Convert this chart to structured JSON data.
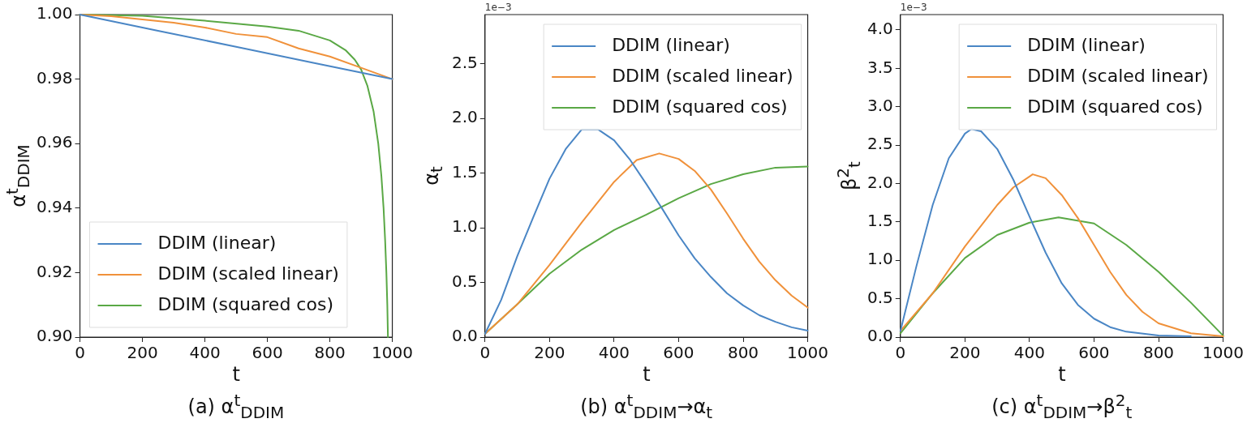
{
  "chart_data": [
    {
      "type": "line",
      "title": "(a) α$^{t}$$_{DDIM}$",
      "xlabel": "t",
      "ylabel": "α$^{t}$$_{DDIM}$",
      "xlim": [
        0,
        1000
      ],
      "xticks": [
        0,
        200,
        400,
        600,
        800,
        1000
      ],
      "ylim": [
        0.9,
        1.0
      ],
      "yticks": [
        {
          "value": 0.9,
          "label": "0.90"
        },
        {
          "value": 0.92,
          "label": "0.92"
        },
        {
          "value": 0.94,
          "label": "0.94"
        },
        {
          "value": 0.96,
          "label": "0.96"
        },
        {
          "value": 0.98,
          "label": "0.98"
        },
        {
          "value": 1.0,
          "label": "1.00"
        }
      ],
      "legend": "bottom left",
      "grid": false,
      "series": [
        {
          "name": "DDIM (linear)",
          "color": "#4a86c5",
          "x": [
            0,
            250,
            500,
            750,
            1000
          ],
          "values": [
            1.0,
            0.995,
            0.99,
            0.985,
            0.98
          ]
        },
        {
          "name": "DDIM (scaled linear)",
          "color": "#f0913a",
          "x": [
            0,
            100,
            200,
            300,
            400,
            500,
            600,
            700,
            800,
            900,
            1000
          ],
          "values": [
            1.0,
            0.9995,
            0.9985,
            0.9975,
            0.996,
            0.994,
            0.993,
            0.9895,
            0.987,
            0.9835,
            0.98
          ]
        },
        {
          "name": "DDIM (squared cos)",
          "color": "#5aa845",
          "x": [
            0,
            200,
            400,
            600,
            700,
            800,
            850,
            880,
            900,
            920,
            940,
            955,
            965,
            972,
            977,
            981,
            984,
            986
          ],
          "values": [
            1.0,
            0.9996,
            0.9981,
            0.9963,
            0.995,
            0.992,
            0.989,
            0.986,
            0.983,
            0.978,
            0.97,
            0.96,
            0.95,
            0.94,
            0.93,
            0.92,
            0.91,
            0.9
          ]
        }
      ]
    },
    {
      "type": "line",
      "title": "(b) α$^{t}$$_{DDIM}$→α$_{t}$",
      "xlabel": "t",
      "ylabel": "α$_{t}$",
      "annotations": [
        "1e−3"
      ],
      "xlim": [
        0,
        1000
      ],
      "xticks": [
        0,
        200,
        400,
        600,
        800,
        1000
      ],
      "ylim": [
        0,
        2.95
      ],
      "yticks": [
        {
          "value": 0,
          "label": "0.0"
        },
        {
          "value": 0.5,
          "label": "0.5"
        },
        {
          "value": 1,
          "label": "1.0"
        },
        {
          "value": 1.5,
          "label": "1.5"
        },
        {
          "value": 2,
          "label": "2.0"
        },
        {
          "value": 2.5,
          "label": "2.5"
        }
      ],
      "legend": "top right",
      "grid": false,
      "series": [
        {
          "name": "DDIM (linear)",
          "color": "#4a86c5",
          "x": [
            0,
            50,
            100,
            150,
            200,
            250,
            300,
            350,
            400,
            450,
            500,
            550,
            600,
            650,
            700,
            750,
            800,
            850,
            900,
            950,
            1000
          ],
          "values": [
            0.03,
            0.34,
            0.74,
            1.1,
            1.45,
            1.72,
            1.9,
            1.9,
            1.8,
            1.62,
            1.4,
            1.17,
            0.93,
            0.72,
            0.55,
            0.4,
            0.29,
            0.2,
            0.14,
            0.09,
            0.06
          ]
        },
        {
          "name": "DDIM (scaled linear)",
          "color": "#f0913a",
          "x": [
            0,
            100,
            200,
            300,
            400,
            470,
            540,
            600,
            650,
            700,
            750,
            800,
            850,
            900,
            950,
            1000
          ],
          "values": [
            0.03,
            0.3,
            0.66,
            1.05,
            1.42,
            1.62,
            1.68,
            1.63,
            1.52,
            1.35,
            1.13,
            0.9,
            0.69,
            0.52,
            0.38,
            0.27
          ]
        },
        {
          "name": "DDIM (squared cos)",
          "color": "#5aa845",
          "x": [
            0,
            100,
            200,
            300,
            400,
            500,
            600,
            700,
            800,
            900,
            1000
          ],
          "values": [
            0.03,
            0.3,
            0.58,
            0.8,
            0.98,
            1.12,
            1.27,
            1.4,
            1.49,
            1.55,
            1.56
          ]
        }
      ]
    },
    {
      "type": "line",
      "title": "(c) α$^{t}$$_{DDIM}$→β$^{2}$$_{t}$",
      "xlabel": "t",
      "ylabel": "β$^{2}$$_{t}$",
      "annotations": [
        "1e−3"
      ],
      "xlim": [
        0,
        1000
      ],
      "xticks": [
        0,
        200,
        400,
        600,
        800,
        1000
      ],
      "ylim": [
        0,
        4.2
      ],
      "yticks": [
        {
          "value": 0,
          "label": "0.0"
        },
        {
          "value": 0.5,
          "label": "0.5"
        },
        {
          "value": 1,
          "label": "1.0"
        },
        {
          "value": 1.5,
          "label": "1.5"
        },
        {
          "value": 2,
          "label": "2.0"
        },
        {
          "value": 2.5,
          "label": "2.5"
        },
        {
          "value": 3,
          "label": "3.0"
        },
        {
          "value": 3.5,
          "label": "3.5"
        },
        {
          "value": 4,
          "label": "4.0"
        }
      ],
      "legend": "top right",
      "grid": false,
      "series": [
        {
          "name": "DDIM (linear)",
          "color": "#4a86c5",
          "x": [
            0,
            50,
            100,
            150,
            200,
            220,
            250,
            300,
            350,
            400,
            450,
            500,
            550,
            600,
            650,
            700,
            800,
            900
          ],
          "values": [
            0.08,
            0.93,
            1.72,
            2.33,
            2.65,
            2.71,
            2.68,
            2.45,
            2.05,
            1.57,
            1.1,
            0.7,
            0.42,
            0.24,
            0.13,
            0.07,
            0.02,
            0.01
          ]
        },
        {
          "name": "DDIM (scaled linear)",
          "color": "#f0913a",
          "x": [
            0,
            100,
            200,
            300,
            350,
            410,
            450,
            500,
            550,
            600,
            650,
            700,
            750,
            800,
            900,
            1000
          ],
          "values": [
            0.08,
            0.57,
            1.18,
            1.72,
            1.95,
            2.12,
            2.07,
            1.85,
            1.55,
            1.2,
            0.85,
            0.55,
            0.33,
            0.18,
            0.05,
            0.01
          ]
        },
        {
          "name": "DDIM (squared cos)",
          "color": "#5aa845",
          "x": [
            0,
            100,
            200,
            300,
            400,
            490,
            600,
            700,
            800,
            900,
            1000
          ],
          "values": [
            0.05,
            0.57,
            1.03,
            1.33,
            1.49,
            1.56,
            1.48,
            1.2,
            0.85,
            0.45,
            0.02
          ]
        }
      ]
    }
  ]
}
